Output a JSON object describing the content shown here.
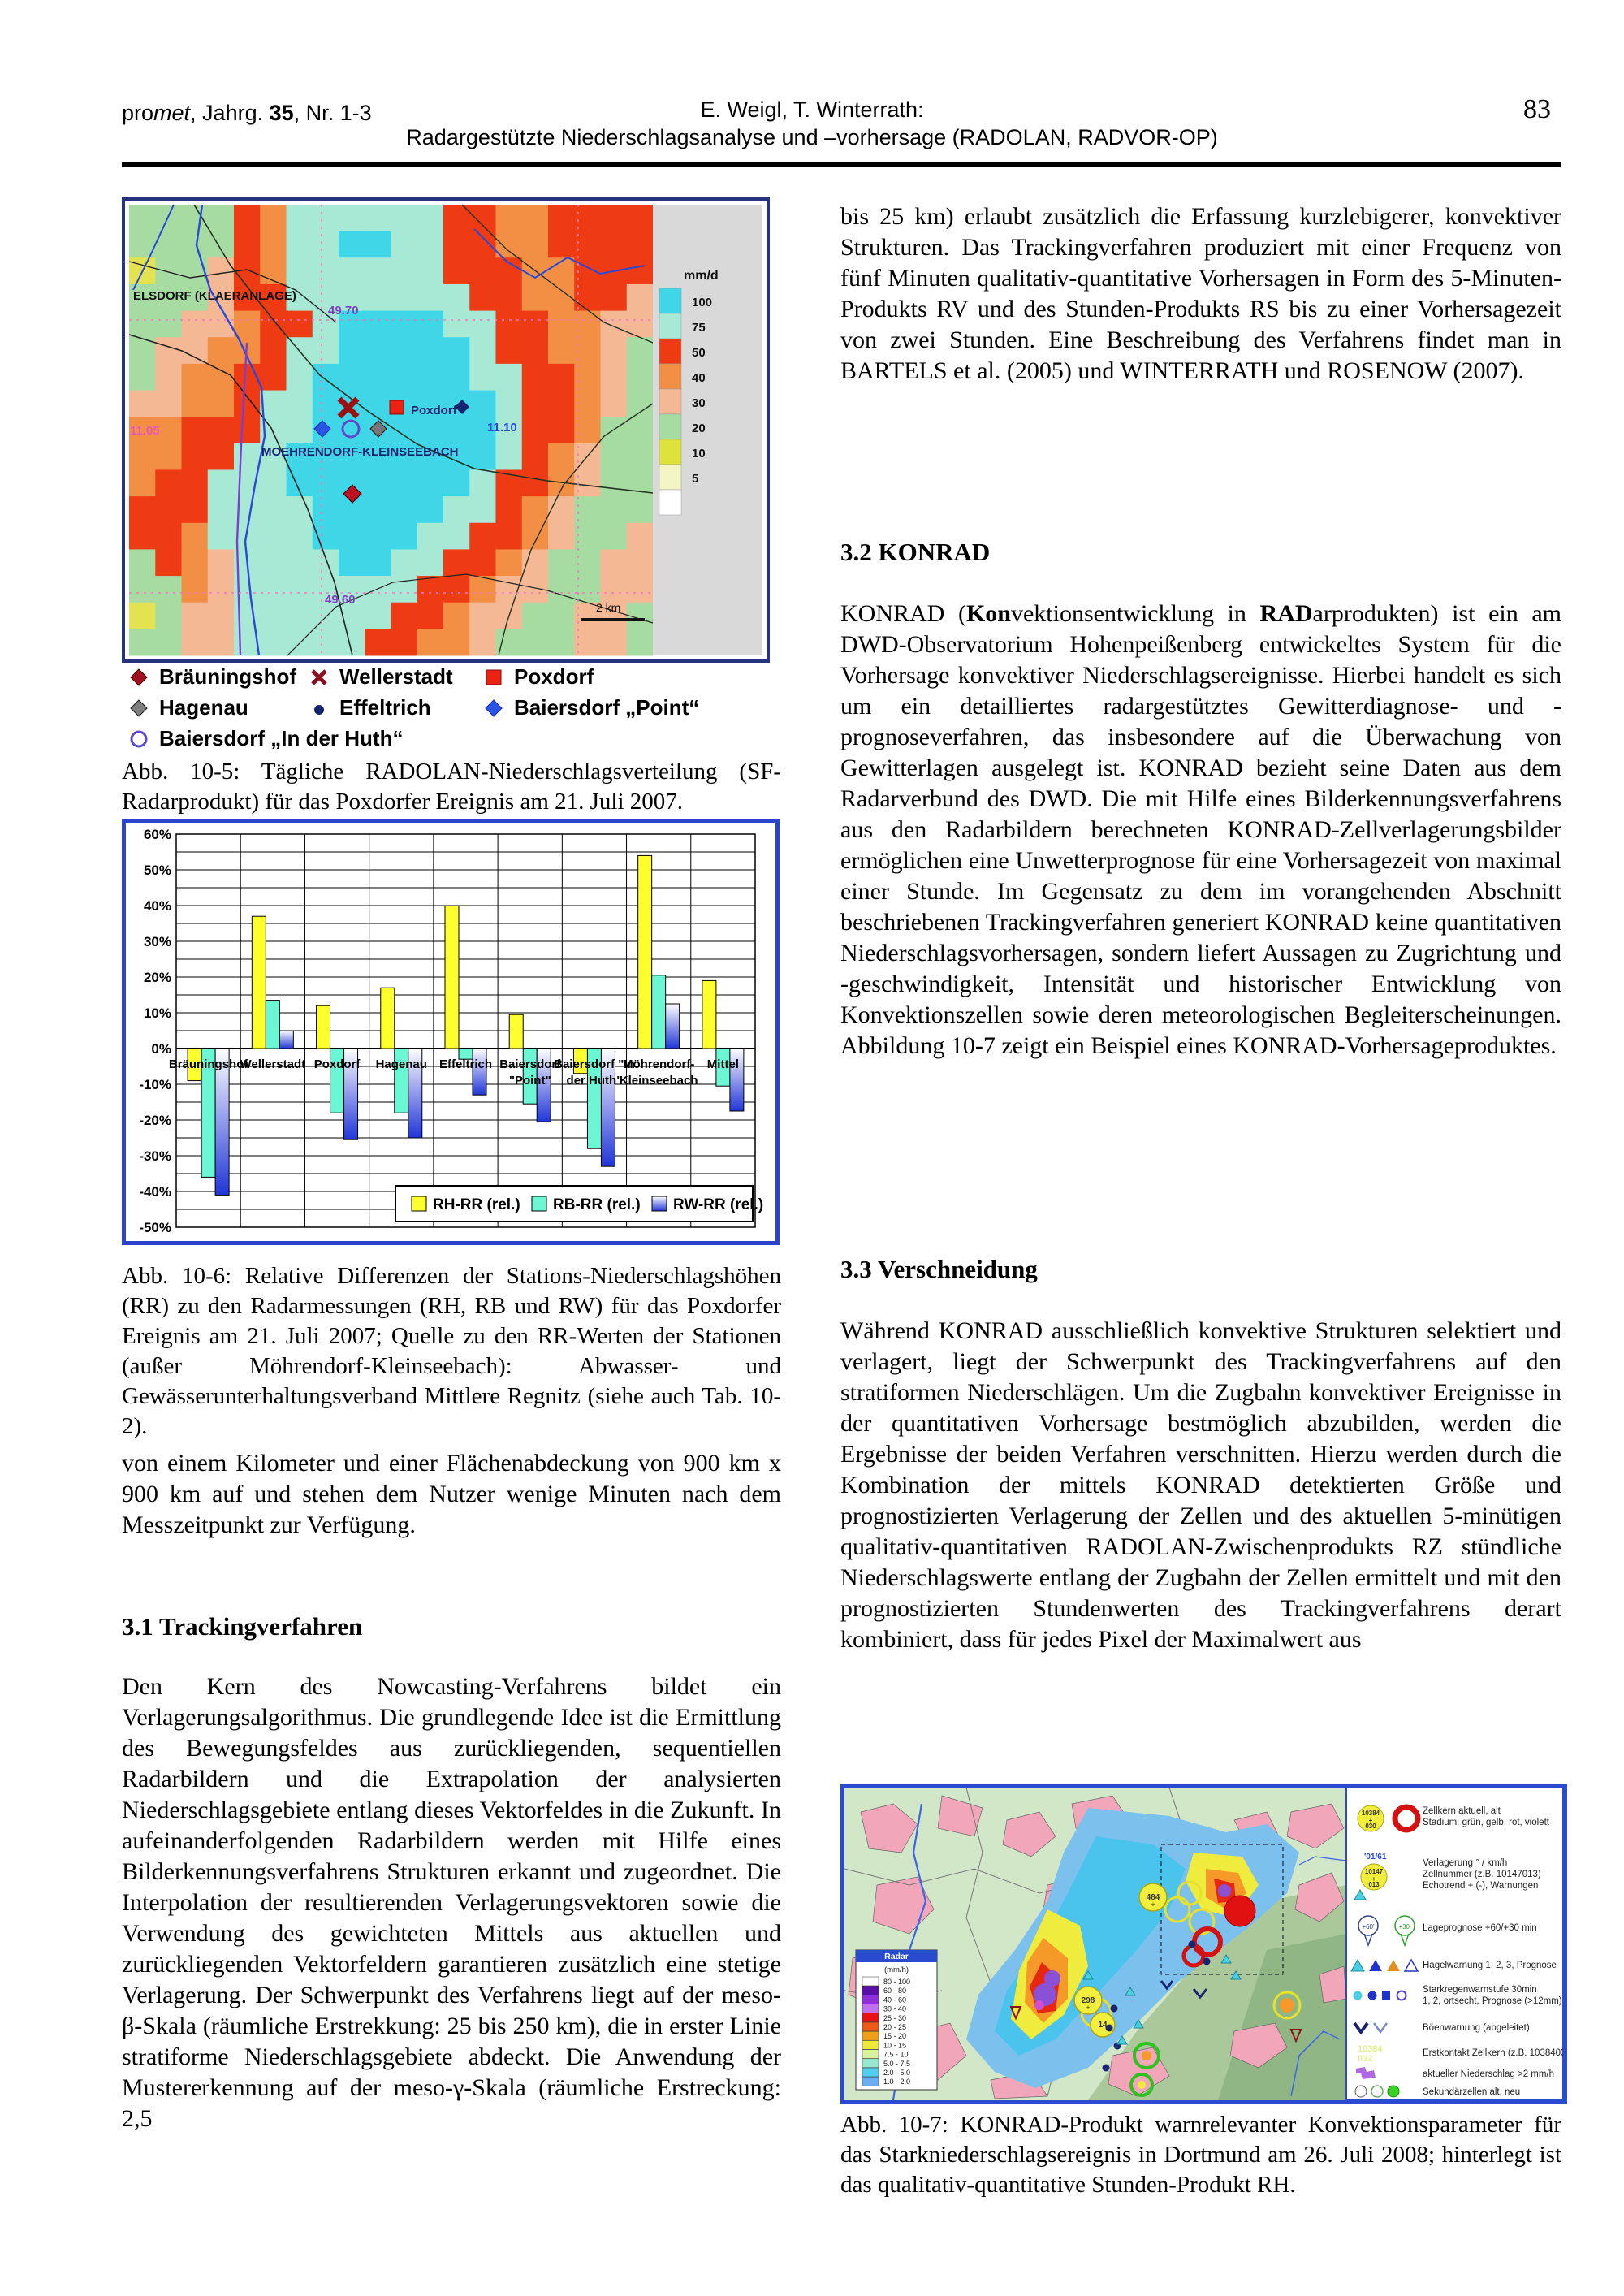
{
  "header": {
    "journal_pre": "pro",
    "journal_it": "met",
    "journal_mid": ", Jahrg. ",
    "journal_vol": "35",
    "journal_post": ", Nr. 1-3",
    "authors": "E. Weigl, T. Winterrath:",
    "title": "Radargestützte Niederschlagsanalyse und –vorhersage (RADOLAN, RADVOR-OP)",
    "page_number": "83"
  },
  "fig_10_5": {
    "legend": {
      "title": "mm/d",
      "entries": [
        {
          "label": "100",
          "color": "#3fd7e8"
        },
        {
          "label": "75",
          "color": "#a8e9d6"
        },
        {
          "label": "50",
          "color": "#ee3b13"
        },
        {
          "label": "40",
          "color": "#f28f44"
        },
        {
          "label": "30",
          "color": "#f5b894"
        },
        {
          "label": "20",
          "color": "#a6dca2"
        },
        {
          "label": "10",
          "color": "#dde23d"
        },
        {
          "label": "5",
          "color": "#f3f6c4"
        },
        {
          "label": "",
          "color": "#ffffff"
        }
      ]
    },
    "labels": {
      "place_top_left": "ELSDORF (KLAERANLAGE)",
      "place_center": "MOEHRENDORF-KLEINSEEBACH",
      "place_poxdorf": "Poxdorf",
      "lat_top": "49.70",
      "lon_right": "11.10",
      "lon_left": "11.05",
      "lat_bottom": "49.60",
      "scale": "2 km"
    },
    "stations": [
      {
        "symbol": "diamond-darkred",
        "label": "Bräuningshof"
      },
      {
        "symbol": "x-darkred",
        "label": "Wellerstadt"
      },
      {
        "symbol": "square-red",
        "label": "Poxdorf"
      },
      {
        "symbol": "diamond-gray",
        "label": "Hagenau"
      },
      {
        "symbol": "dot-navy",
        "label": "Effeltrich"
      },
      {
        "symbol": "diamond-blue",
        "label": "Baiersdorf „Point“"
      },
      {
        "symbol": "circle-outline",
        "label": "Baiersdorf „In der Huth“"
      }
    ],
    "caption": "Abb. 10-5: Tägliche RADOLAN-Niederschlagsverteilung (SF-Radarprodukt) für das Poxdorfer Ereignis am 21. Juli 2007."
  },
  "chart_data": {
    "type": "bar",
    "title": "",
    "xlabel": "",
    "ylabel": "",
    "ylim": [
      -50,
      60
    ],
    "ytick_step": 10,
    "grid_step": 5,
    "grid": true,
    "legend_position": "bottom-right",
    "categories": [
      "Bräuningshof",
      "Wellerstadt",
      "Poxdorf",
      "Hagenau",
      "Effeltrich",
      "Baiersdorf \"Point\"",
      "Baiersdorf \"In der Huth\"",
      "Möhrendorf-Kleinseebach",
      "Mittel"
    ],
    "category_lines": [
      [
        "Bräuningshof"
      ],
      [
        "Wellerstadt"
      ],
      [
        "Poxdorf"
      ],
      [
        "Hagenau"
      ],
      [
        "Effeltrich"
      ],
      [
        "Baiersdorf",
        "\"Point\""
      ],
      [
        "Baiersdorf \"In",
        "der Huth\""
      ],
      [
        "Möhrendorf-",
        "Kleinseebach"
      ],
      [
        "Mittel"
      ]
    ],
    "series": [
      {
        "name": "RH-RR (rel.)",
        "color": "#ffff2e",
        "values": [
          -9,
          37,
          12,
          17,
          40,
          9.5,
          -7,
          54,
          19
        ]
      },
      {
        "name": "RB-RR (rel.)",
        "color": "#6cf7d4",
        "values": [
          -36,
          13.5,
          -18,
          -18,
          -3,
          -15.5,
          -28,
          20.5,
          -10.5
        ]
      },
      {
        "name": "RW-RR (rel.)",
        "color": "gradient-blue",
        "values": [
          -41,
          5,
          -25.5,
          -25,
          -13,
          -20.5,
          -33,
          12.5,
          -17.5
        ]
      }
    ]
  },
  "fig_10_6_caption": "Abb. 10-6: Relative Differenzen der Stations-Niederschlagshöhen (RR) zu den Radarmessungen (RH, RB und RW) für das Poxdorfer Ereignis am 21. Juli 2007; Quelle zu den RR-Werten der Stationen (außer Möhrendorf-Kleinseebach): Abwasser- und Gewässerunterhaltungsverband Mittlere Regnitz (siehe auch Tab. 10-2).",
  "left_column": {
    "para_after_fig": "von einem Kilometer und einer Flächenabdeckung von 900 km x 900 km auf und stehen dem Nutzer wenige Minuten nach dem Messzeitpunkt zur Verfügung.",
    "heading_3_1": "3.1 Trackingverfahren",
    "para_3_1": "Den Kern des Nowcasting-Verfahrens bildet ein Verlagerungsalgorithmus. Die grundlegende Idee ist die Ermittlung des Bewegungsfeldes aus zurückliegenden, sequentiellen Radarbildern und die Extrapolation der analysierten Niederschlagsgebiete entlang dieses Vektorfeldes in die Zukunft. In aufeinanderfolgenden Radarbildern werden mit Hilfe eines Bilderkennungsverfahrens Strukturen erkannt und zugeordnet. Die Interpolation der resultierenden Verlagerungsvektoren sowie die Verwendung des gewichteten Mittels aus aktuellen und zurückliegenden Vektorfeldern garantieren zusätzlich eine stetige Verlagerung. Der Schwerpunkt des Verfahrens liegt auf der meso-β-Skala (räumliche Erstrekkung: 25 bis 250 km), die in erster Linie stratiforme Niederschlagsgebiete abdeckt. Die Anwendung der Mustererkennung auf der meso-γ-Skala (räumliche Erstreckung: 2,5"
  },
  "right_column": {
    "para_1": "bis 25 km) erlaubt zusätzlich die Erfassung kurzlebigerer, konvektiver Strukturen. Das Trackingverfahren produziert mit einer Frequenz von fünf Minuten qualitativ-quantitative Vorhersagen in Form des 5-Minuten-Produkts RV und des Stunden-Produkts RS bis zu einer Vorhersagezeit von zwei Stunden. Eine Beschreibung des Verfahrens findet man in BARTELS et al. (2005) und WINTERRATH und ROSENOW (2007).",
    "heading_3_2": "3.2 KONRAD",
    "para_3_2": {
      "s1": "KONRAD (",
      "s2": "Kon",
      "s3": "vektionsentwicklung in ",
      "s4": "RAD",
      "s5": "arprodukten) ist ein am DWD-Observatorium Hohenpeißenberg entwickeltes System für die Vorhersage konvektiver Niederschlagsereignisse. Hierbei handelt es sich um ein detailliertes radargestütztes Gewitterdiagnose- und -prognoseverfahren, das insbesondere auf die Überwachung von Gewitterlagen ausgelegt ist. KONRAD bezieht seine Daten aus dem Radarverbund des DWD. Die mit Hilfe eines Bilderkennungsverfahrens aus den Radarbildern berechneten KONRAD-Zellverlagerungsbilder ermöglichen eine Unwetterprognose für eine Vorhersagezeit von maximal einer Stunde. Im Gegensatz zu dem im vorangehenden Abschnitt beschriebenen Trackingverfahren generiert KONRAD keine quantitativen Niederschlagsvorhersagen, sondern liefert Aussagen zu Zugrichtung und -geschwindigkeit, Intensität und historischer Entwicklung von Konvektionszellen sowie deren meteorologischen Begleiterscheinungen. Abbildung 10-7 zeigt ein Beispiel eines KONRAD-Vorhersageproduktes."
    },
    "heading_3_3": "3.3 Verschneidung",
    "para_3_3": "Während KONRAD ausschließlich konvektive Strukturen selektiert und verlagert, liegt der Schwerpunkt des Trackingverfahrens auf den stratiformen Niederschlägen. Um die Zugbahn konvektiver Ereignisse in der quantitativen Vorhersage bestmöglich abzubilden, werden die Ergebnisse der beiden Verfahren verschnitten. Hierzu werden durch die Kombination der mittels KONRAD detektierten Größe und prognostizierten Verlagerung der Zellen und des aktuellen 5-minütigen qualitativ-quantitativen RADOLAN-Zwischenprodukts RZ stündliche Niederschlagswerte entlang der Zugbahn der Zellen ermittelt und mit den prognostizierten Stundenwerten des Trackingverfahrens derart kombiniert, dass für jedes Pixel der Maximalwert aus"
  },
  "fig_10_7": {
    "legend_rows": [
      {
        "lines": [
          "Zellkern aktuell, alt",
          "Stadium: grün, gelb, rot, violett"
        ]
      },
      {
        "lines": [
          "Verlagerung ° / km/h",
          "Zellnummer (z.B. 10147013)",
          "Echotrend + (-), Warnungen"
        ]
      },
      {
        "lines": [
          "Lageprognose +60/+30 min"
        ]
      },
      {
        "lines": [
          "Hagelwarnung 1, 2, 3, Prognose"
        ]
      },
      {
        "lines": [
          "Starkregenwarnstufe 30min",
          "1, 2, ortsecht, Prognose (>12mm)"
        ]
      },
      {
        "lines": [
          "Böenwarnung (abgeleitet)"
        ]
      },
      {
        "lines": [
          "Erstkontakt Zellkern (z.B. 10384032)"
        ]
      },
      {
        "lines": [
          "aktueller Niederschlag >2 mm/h"
        ]
      },
      {
        "lines": [
          "Sekundärzellen alt, neu"
        ]
      }
    ],
    "symbols": {
      "cell1_lines": [
        "10384",
        "+",
        "030"
      ],
      "cell2_header": "'01/61",
      "cell2_lines": [
        "10147",
        "+",
        "013"
      ],
      "pin60": "+60'",
      "pin30": "+30'",
      "first_contact_lines": [
        "10384",
        "032"
      ]
    },
    "radar_scale": {
      "title": "Radar",
      "unit": "(mm/h)",
      "rows": [
        {
          "label": "80 - 100",
          "color": "#ffffff"
        },
        {
          "label": "60 - 80",
          "color": "#5a10a8"
        },
        {
          "label": "40 - 60",
          "color": "#9030d8"
        },
        {
          "label": "30 - 40",
          "color": "#c070e8"
        },
        {
          "label": "25 - 30",
          "color": "#e81212"
        },
        {
          "label": "20 - 25",
          "color": "#f05a14"
        },
        {
          "label": "15 - 20",
          "color": "#f0a018"
        },
        {
          "label": "10 - 15",
          "color": "#f0e83c"
        },
        {
          "label": "7.5 - 10",
          "color": "#d8f0a0"
        },
        {
          "label": "5.0 - 7.5",
          "color": "#98e8d0"
        },
        {
          "label": "2.0 - 5.0",
          "color": "#50d0ee"
        },
        {
          "label": "1.0 - 2.0",
          "color": "#6aaef2"
        }
      ]
    },
    "annotations": [
      "484",
      "298",
      "14"
    ],
    "caption": "Abb. 10-7: KONRAD-Produkt warnrelevanter Konvektionsparameter für das Starkniederschlagsereignis in Dortmund am 26. Juli 2008; hinterlegt ist das qualitativ-quantitative Stunden-Produkt RH."
  }
}
